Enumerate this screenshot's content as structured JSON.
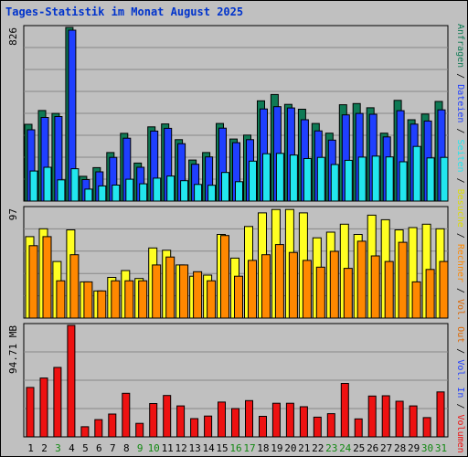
{
  "window_title": "Tages-Statistik im Monat August 2025",
  "colors": {
    "background": "#c0c0c0",
    "title": "#0033cc",
    "anfragen": "#0f7a55",
    "dateien": "#1f3fff",
    "seiten": "#22e6ee",
    "besuche": "#ffff22",
    "rechner": "#ff8800",
    "volumen": "#ee1111",
    "weekend_label": "#118811",
    "weekday_label": "#000000"
  },
  "chart_data": [
    {
      "type": "bar",
      "panel": "hits",
      "ylabel_top": "826",
      "ylim": [
        0,
        826
      ],
      "categories": [
        "1",
        "2",
        "3",
        "4",
        "5",
        "6",
        "7",
        "8",
        "9",
        "10",
        "11",
        "12",
        "13",
        "14",
        "15",
        "16",
        "17",
        "18",
        "19",
        "20",
        "21",
        "22",
        "23",
        "24",
        "25",
        "26",
        "27",
        "28",
        "29",
        "30",
        "31"
      ],
      "series": [
        {
          "name": "Anfragen",
          "values": [
            365,
            431,
            417,
            826,
            118,
            159,
            231,
            322,
            181,
            353,
            367,
            292,
            195,
            231,
            369,
            295,
            314,
            477,
            507,
            460,
            437,
            369,
            323,
            458,
            464,
            444,
            323,
            479,
            387,
            414,
            474
          ]
        },
        {
          "name": "Dateien",
          "values": [
            339,
            398,
            402,
            813,
            102,
            139,
            208,
            299,
            161,
            333,
            346,
            273,
            175,
            210,
            347,
            278,
            292,
            438,
            449,
            443,
            387,
            334,
            290,
            410,
            417,
            413,
            305,
            430,
            366,
            381,
            434
          ]
        },
        {
          "name": "Seiten",
          "values": [
            143,
            161,
            101,
            154,
            57,
            72,
            76,
            104,
            82,
            109,
            119,
            97,
            79,
            75,
            136,
            92,
            190,
            225,
            227,
            219,
            202,
            208,
            174,
            194,
            209,
            214,
            210,
            187,
            260,
            205,
            208
          ]
        }
      ]
    },
    {
      "type": "bar",
      "panel": "visits",
      "ylabel_top": "97",
      "ylim": [
        0,
        97
      ],
      "categories": [
        "1",
        "2",
        "3",
        "4",
        "5",
        "6",
        "7",
        "8",
        "9",
        "10",
        "11",
        "12",
        "13",
        "14",
        "15",
        "16",
        "17",
        "18",
        "19",
        "20",
        "21",
        "22",
        "23",
        "24",
        "25",
        "26",
        "27",
        "28",
        "29",
        "30",
        "31"
      ],
      "series": [
        {
          "name": "Besuche",
          "values": [
            72,
            79,
            50,
            78,
            32,
            24,
            36,
            42,
            35,
            62,
            60,
            47,
            37,
            38,
            74,
            53,
            81,
            93,
            96,
            96,
            93,
            71,
            76,
            83,
            74,
            91,
            87,
            78,
            80,
            83,
            79
          ]
        },
        {
          "name": "Rechner",
          "values": [
            64,
            72,
            33,
            56,
            32,
            24,
            33,
            33,
            33,
            47,
            54,
            47,
            41,
            33,
            73,
            37,
            51,
            56,
            65,
            58,
            51,
            45,
            59,
            44,
            68,
            55,
            50,
            67,
            32,
            43,
            50
          ]
        }
      ]
    },
    {
      "type": "bar",
      "panel": "volume",
      "ylabel_top": "94.71 MB",
      "ylim": [
        0,
        94.71
      ],
      "categories": [
        "1",
        "2",
        "3",
        "4",
        "5",
        "6",
        "7",
        "8",
        "9",
        "10",
        "11",
        "12",
        "13",
        "14",
        "15",
        "16",
        "17",
        "18",
        "19",
        "20",
        "21",
        "22",
        "23",
        "24",
        "25",
        "26",
        "27",
        "28",
        "29",
        "30",
        "31"
      ],
      "series": [
        {
          "name": "Volumen",
          "values": [
            42,
            50,
            59,
            94.71,
            8.6,
            14.7,
            19.4,
            37,
            11.5,
            28.3,
            35.2,
            26.3,
            15.5,
            17.7,
            29.6,
            24.1,
            30.8,
            17.5,
            28.6,
            28.6,
            25.6,
            16.8,
            19.7,
            45.4,
            15.3,
            34.7,
            34.9,
            30.3,
            26.3,
            16.4,
            38.2
          ]
        }
      ]
    }
  ],
  "x_labels": [
    {
      "text": "1",
      "weekend": false
    },
    {
      "text": "2",
      "weekend": false
    },
    {
      "text": "3",
      "weekend": true
    },
    {
      "text": "4",
      "weekend": false
    },
    {
      "text": "5",
      "weekend": false
    },
    {
      "text": "6",
      "weekend": false
    },
    {
      "text": "7",
      "weekend": false
    },
    {
      "text": "8",
      "weekend": false
    },
    {
      "text": "9",
      "weekend": true
    },
    {
      "text": "10",
      "weekend": true
    },
    {
      "text": "11",
      "weekend": false
    },
    {
      "text": "12",
      "weekend": false
    },
    {
      "text": "13",
      "weekend": false
    },
    {
      "text": "14",
      "weekend": false
    },
    {
      "text": "15",
      "weekend": false
    },
    {
      "text": "16",
      "weekend": true
    },
    {
      "text": "17",
      "weekend": true
    },
    {
      "text": "18",
      "weekend": false
    },
    {
      "text": "19",
      "weekend": false
    },
    {
      "text": "20",
      "weekend": false
    },
    {
      "text": "21",
      "weekend": false
    },
    {
      "text": "22",
      "weekend": false
    },
    {
      "text": "23",
      "weekend": true
    },
    {
      "text": "24",
      "weekend": true
    },
    {
      "text": "25",
      "weekend": false
    },
    {
      "text": "26",
      "weekend": false
    },
    {
      "text": "27",
      "weekend": false
    },
    {
      "text": "28",
      "weekend": false
    },
    {
      "text": "29",
      "weekend": false
    },
    {
      "text": "30",
      "weekend": true
    },
    {
      "text": "31",
      "weekend": true
    }
  ],
  "legend": {
    "top": [
      "Anfragen",
      " / ",
      "Dateien",
      " / ",
      "Seiten",
      " / ",
      "Besuche",
      " / ",
      "Rechner",
      " / ",
      "Vol. Out",
      " / ",
      "Vol. In",
      " / ",
      "Volumen"
    ],
    "top_colors": [
      "#0f7a55",
      "#000000",
      "#1f3fff",
      "#000000",
      "#22e6ee",
      "#000000",
      "#dddd00",
      "#000000",
      "#ff8800",
      "#000000",
      "#dd6600",
      "#000000",
      "#1f3fff",
      "#000000",
      "#ee1111"
    ]
  }
}
